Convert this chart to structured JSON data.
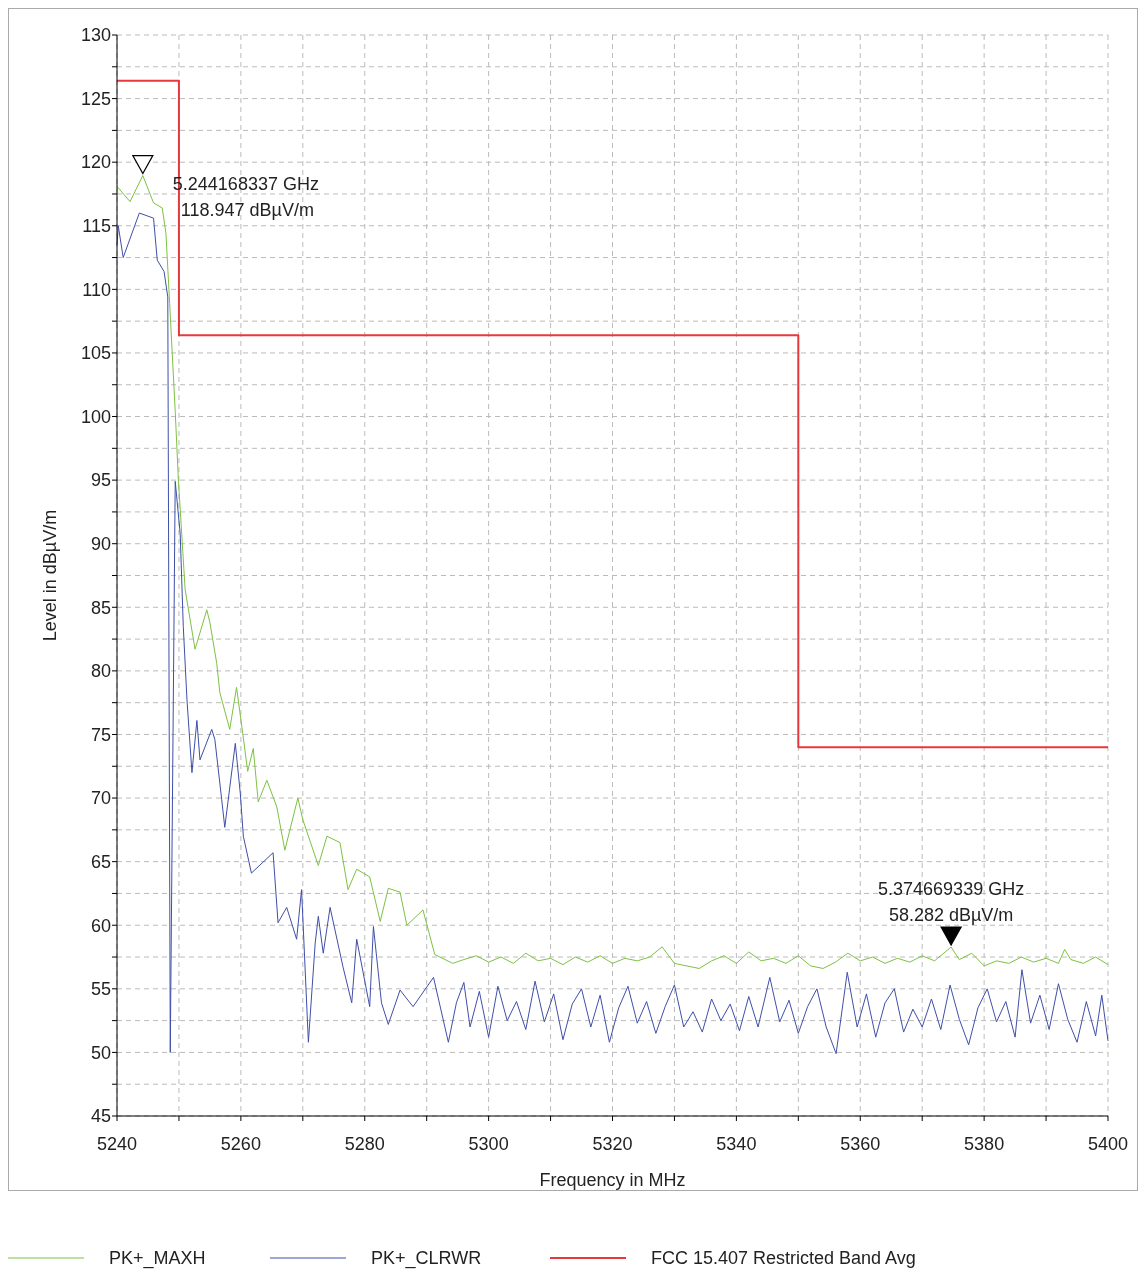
{
  "chart_data": {
    "type": "line",
    "xlabel": "Frequency in MHz",
    "ylabel": "Level in dBµV/m",
    "xlim": [
      5240,
      5400
    ],
    "ylim": [
      45,
      130
    ],
    "xticks": [
      5240,
      {
        "value": 5250,
        "label": null
      },
      5260,
      {
        "value": 5270,
        "label": null
      },
      5280,
      {
        "value": 5290,
        "label": null
      },
      5300,
      {
        "value": 5310,
        "label": null
      },
      5320,
      {
        "value": 5330,
        "label": null
      },
      5340,
      {
        "value": 5350,
        "label": null
      },
      5360,
      {
        "value": 5370,
        "label": null
      },
      5380,
      {
        "value": 5390,
        "label": null
      },
      5400
    ],
    "yticks": [
      45,
      {
        "value": 47.5,
        "label": null
      },
      50,
      {
        "value": 52.5,
        "label": null
      },
      55,
      {
        "value": 57.5,
        "label": null
      },
      60,
      {
        "value": 62.5,
        "label": null
      },
      65,
      {
        "value": 67.5,
        "label": null
      },
      70,
      {
        "value": 72.5,
        "label": null
      },
      75,
      {
        "value": 77.5,
        "label": null
      },
      80,
      {
        "value": 82.5,
        "label": null
      },
      85,
      {
        "value": 87.5,
        "label": null
      },
      90,
      {
        "value": 92.5,
        "label": null
      },
      95,
      {
        "value": 97.5,
        "label": null
      },
      100,
      {
        "value": 102.5,
        "label": null
      },
      105,
      {
        "value": 107.5,
        "label": null
      },
      110,
      {
        "value": 112.5,
        "label": null
      },
      115,
      {
        "value": 117.5,
        "label": null
      },
      120,
      {
        "value": 122.5,
        "label": null
      },
      125,
      {
        "value": 127.5,
        "label": null
      },
      130
    ],
    "grid": true,
    "legend": "bottom",
    "annotations": [
      {
        "text": "5.244168337 GHz\n118.947 dBµV/m",
        "x": 5244.168337,
        "y": 118.947
      },
      {
        "text": "5.374669339 GHz\n58.282 dBµV/m",
        "x": 5374.669339,
        "y": 58.282
      }
    ],
    "series": [
      {
        "name": "PK+_MAXH",
        "color": "#7dc242",
        "x": [
          5240,
          5242.1,
          5244.168337,
          5245.9,
          5247.3,
          5247.9,
          5248.5,
          5249.4,
          5249.9,
          5251.0,
          5252.6,
          5254.5,
          5255.0,
          5256.1,
          5256.6,
          5258.2,
          5259.3,
          5260.3,
          5261.1,
          5262.0,
          5262.8,
          5264.2,
          5265.8,
          5267.1,
          5269.2,
          5270.0,
          5272.5,
          5273.9,
          5276.0,
          5277.3,
          5278.7,
          5280.8,
          5282.5,
          5283.8,
          5285.7,
          5286.8,
          5289.4,
          5291.3,
          5294.2,
          5296,
          5298,
          5300,
          5302,
          5304,
          5306,
          5308,
          5310,
          5312,
          5314,
          5316,
          5318,
          5320,
          5322,
          5324,
          5326,
          5328,
          5330,
          5332,
          5334,
          5336,
          5338,
          5340,
          5342,
          5344,
          5346,
          5348,
          5350,
          5352,
          5354,
          5356,
          5358,
          5360,
          5362,
          5364,
          5366,
          5368,
          5370,
          5372,
          5374.669339,
          5376,
          5378,
          5380,
          5382,
          5384,
          5386,
          5388,
          5390,
          5392,
          5393,
          5394,
          5396,
          5398,
          5400
        ],
        "values": [
          118.1,
          116.9,
          118.947,
          116.8,
          116.4,
          114.4,
          108.9,
          100.4,
          95.1,
          86.4,
          81.7,
          84.8,
          83.8,
          80.6,
          78.3,
          75.4,
          78.7,
          75.1,
          72.1,
          73.9,
          69.7,
          71.4,
          69.3,
          65.9,
          70.0,
          68.3,
          64.7,
          67.0,
          66.5,
          62.8,
          64.4,
          63.8,
          60.3,
          62.9,
          62.6,
          60.0,
          61.2,
          57.7,
          57.0,
          57.3,
          57.6,
          57.1,
          57.5,
          57.0,
          57.8,
          57.2,
          57.4,
          56.9,
          57.5,
          57.1,
          57.6,
          57.0,
          57.4,
          57.2,
          57.5,
          58.3,
          57.0,
          56.8,
          56.6,
          57.2,
          57.6,
          57.0,
          57.9,
          57.2,
          57.4,
          57.0,
          57.6,
          56.8,
          56.6,
          57.1,
          57.8,
          57.2,
          57.5,
          57.0,
          57.4,
          57.1,
          57.6,
          57.2,
          58.282,
          57.3,
          57.8,
          56.8,
          57.2,
          57.0,
          57.5,
          57.1,
          57.4,
          57.0,
          58.1,
          57.3,
          57.0,
          57.5,
          56.9
        ]
      },
      {
        "name": "PK+_CLRWR",
        "color": "#3f4fa8",
        "x": [
          5240.0,
          5240.2,
          5241.0,
          5243.6,
          5245.9,
          5246.5,
          5247.6,
          5248.2,
          5248.6,
          5249.4,
          5250.2,
          5250.7,
          5251.3,
          5252.1,
          5252.9,
          5253.4,
          5255.3,
          5255.8,
          5256.9,
          5257.4,
          5259.1,
          5259.9,
          5260.4,
          5261.7,
          5265.2,
          5266.0,
          5267.4,
          5269.0,
          5269.8,
          5270.9,
          5272.0,
          5272.5,
          5273.3,
          5274.4,
          5276.5,
          5277.9,
          5278.7,
          5280.8,
          5281.4,
          5282.7,
          5283.8,
          5285.7,
          5287.8,
          5291.1,
          5293.5,
          5294.8,
          5296,
          5297,
          5298.5,
          5300,
          5301.5,
          5303,
          5304.5,
          5306,
          5307.5,
          5309,
          5310.5,
          5312,
          5313.5,
          5315,
          5316.5,
          5318,
          5319.5,
          5321,
          5322.5,
          5324,
          5325.5,
          5327,
          5328.5,
          5330,
          5331.5,
          5333,
          5334.5,
          5336,
          5337.5,
          5339,
          5340.5,
          5342,
          5343.5,
          5345.4,
          5347,
          5348.5,
          5350,
          5351.5,
          5353,
          5354.5,
          5356.1,
          5357.9,
          5359.5,
          5361,
          5362.5,
          5364,
          5365.5,
          5367,
          5368.5,
          5370,
          5371.5,
          5373,
          5374.5,
          5376,
          5377.5,
          5379,
          5380.5,
          5382,
          5383.5,
          5385,
          5386.1,
          5387.5,
          5389,
          5390.5,
          5392,
          5393.5,
          5395,
          5396.5,
          5398,
          5399,
          5400
        ],
        "values": [
          113.5,
          115.0,
          112.5,
          116.0,
          115.6,
          112.3,
          111.4,
          109.4,
          50.0,
          94.9,
          90.8,
          83.5,
          77.7,
          72.0,
          76.1,
          73.0,
          75.4,
          74.6,
          69.9,
          67.7,
          74.3,
          70.4,
          67.0,
          64.1,
          65.7,
          60.2,
          61.4,
          58.9,
          62.8,
          50.8,
          58.6,
          60.7,
          57.8,
          61.4,
          56.7,
          53.9,
          58.9,
          53.6,
          59.9,
          53.9,
          52.2,
          54.9,
          53.6,
          55.9,
          50.8,
          53.9,
          55.5,
          52.0,
          54.8,
          51.2,
          55.2,
          52.5,
          54.0,
          51.8,
          55.6,
          52.4,
          54.6,
          51.0,
          53.8,
          55.0,
          52.0,
          54.5,
          50.8,
          53.5,
          55.2,
          52.3,
          54.0,
          51.5,
          53.6,
          55.3,
          52.0,
          53.2,
          51.6,
          54.2,
          52.5,
          53.8,
          51.7,
          54.4,
          52.0,
          55.9,
          52.4,
          54.1,
          51.5,
          53.6,
          55.0,
          52.0,
          49.9,
          56.3,
          52.0,
          54.6,
          51.2,
          53.9,
          55.0,
          51.6,
          53.4,
          52.0,
          54.2,
          51.8,
          55.3,
          52.6,
          50.6,
          53.5,
          55.0,
          52.4,
          54.0,
          51.2,
          56.5,
          52.3,
          54.5,
          51.8,
          55.4,
          52.6,
          50.8,
          54.0,
          51.3,
          54.5,
          50.9
        ]
      },
      {
        "name": "FCC 15.407 Restricted Band Avg",
        "color": "#e8383d",
        "type": "step",
        "x": [
          5240,
          5250,
          5350,
          5400
        ],
        "values": [
          126.4,
          106.4,
          74.0,
          74.0
        ]
      }
    ]
  }
}
